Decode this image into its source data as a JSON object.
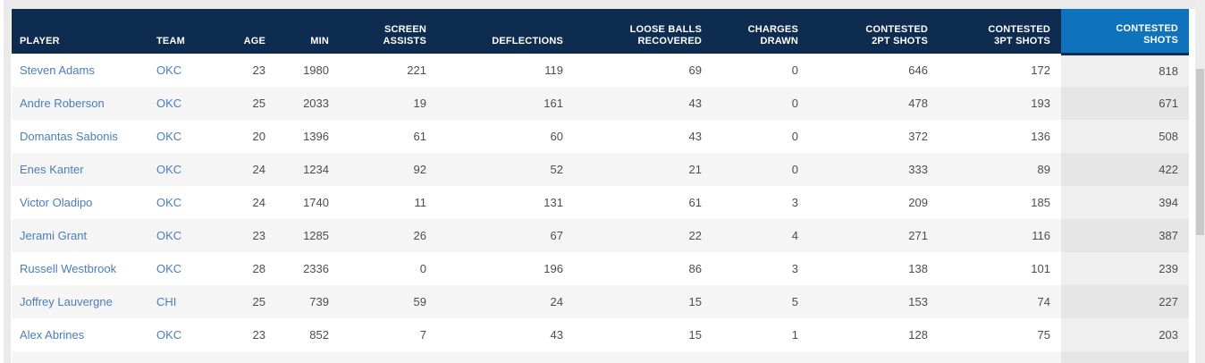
{
  "colors": {
    "header_bg": "#0e2c4f",
    "sorted_header_bg": "#0e72bd",
    "link_color": "#4a7dba",
    "frame_bg": "#eaeaea"
  },
  "table": {
    "columns": [
      {
        "key": "player",
        "label": "PLAYER",
        "align": "left",
        "type": "link",
        "sorted": false
      },
      {
        "key": "team",
        "label": "TEAM",
        "align": "left",
        "type": "link",
        "sorted": false
      },
      {
        "key": "age",
        "label": "AGE",
        "align": "right",
        "type": "number",
        "sorted": false
      },
      {
        "key": "min",
        "label": "MIN",
        "align": "right",
        "type": "number",
        "sorted": false
      },
      {
        "key": "screen_assists",
        "label": "SCREEN\nASSISTS",
        "align": "right",
        "type": "number",
        "sorted": false
      },
      {
        "key": "deflections",
        "label": "DEFLECTIONS",
        "align": "right",
        "type": "number",
        "sorted": false
      },
      {
        "key": "loose_balls_recovered",
        "label": "LOOSE BALLS\nRECOVERED",
        "align": "right",
        "type": "number",
        "sorted": false
      },
      {
        "key": "charges_drawn",
        "label": "CHARGES\nDRAWN",
        "align": "right",
        "type": "number",
        "sorted": false
      },
      {
        "key": "contested_2pt_shots",
        "label": "CONTESTED\n2PT SHOTS",
        "align": "right",
        "type": "number",
        "sorted": false
      },
      {
        "key": "contested_3pt_shots",
        "label": "CONTESTED\n3PT SHOTS",
        "align": "right",
        "type": "number",
        "sorted": false
      },
      {
        "key": "contested_shots",
        "label": "CONTESTED\nSHOTS",
        "align": "right",
        "type": "number",
        "sorted": true
      }
    ],
    "rows": [
      [
        "Steven Adams",
        "OKC",
        "23",
        "1980",
        "221",
        "119",
        "69",
        "0",
        "646",
        "172",
        "818"
      ],
      [
        "Andre Roberson",
        "OKC",
        "25",
        "2033",
        "19",
        "161",
        "43",
        "0",
        "478",
        "193",
        "671"
      ],
      [
        "Domantas Sabonis",
        "OKC",
        "20",
        "1396",
        "61",
        "60",
        "43",
        "0",
        "372",
        "136",
        "508"
      ],
      [
        "Enes Kanter",
        "OKC",
        "24",
        "1234",
        "92",
        "52",
        "21",
        "0",
        "333",
        "89",
        "422"
      ],
      [
        "Victor Oladipo",
        "OKC",
        "24",
        "1740",
        "11",
        "131",
        "61",
        "3",
        "209",
        "185",
        "394"
      ],
      [
        "Jerami Grant",
        "OKC",
        "23",
        "1285",
        "26",
        "67",
        "22",
        "4",
        "271",
        "116",
        "387"
      ],
      [
        "Russell Westbrook",
        "OKC",
        "28",
        "2336",
        "0",
        "196",
        "86",
        "3",
        "138",
        "101",
        "239"
      ],
      [
        "Joffrey Lauvergne",
        "CHI",
        "25",
        "739",
        "59",
        "24",
        "15",
        "5",
        "153",
        "74",
        "227"
      ],
      [
        "Alex Abrines",
        "OKC",
        "23",
        "852",
        "7",
        "43",
        "15",
        "1",
        "128",
        "75",
        "203"
      ]
    ]
  }
}
